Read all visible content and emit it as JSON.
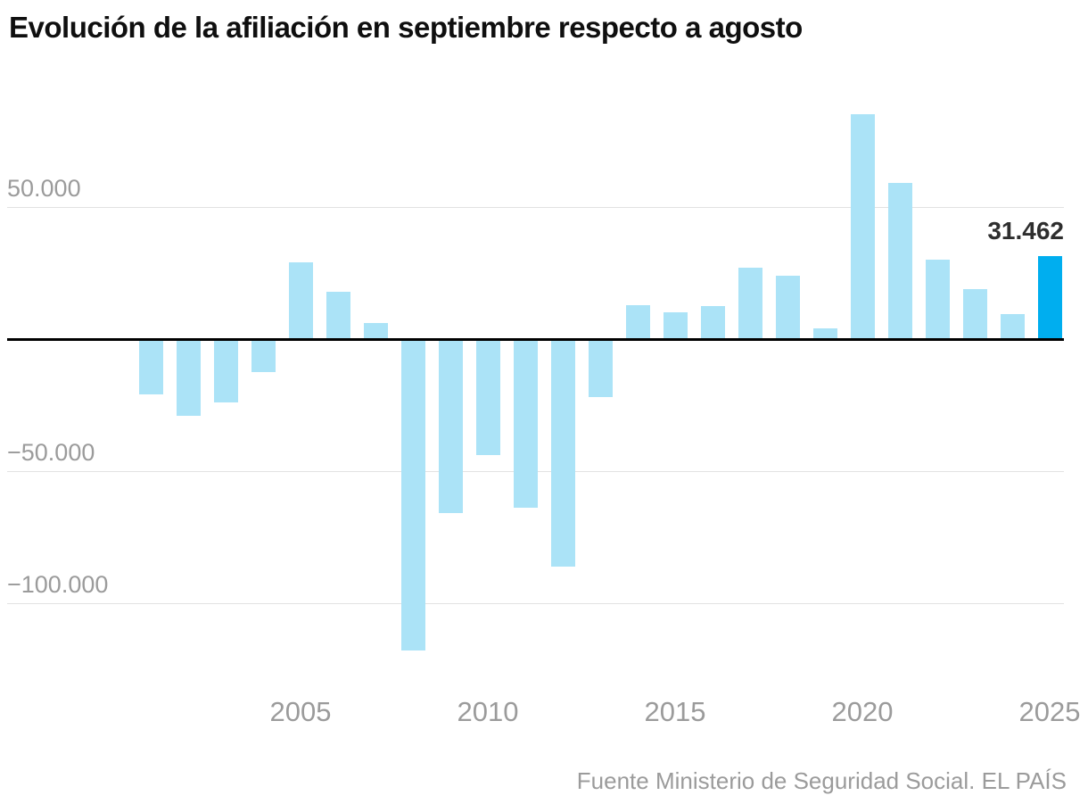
{
  "title": "Evolución de la afiliación en septiembre respecto a agosto",
  "footer": {
    "source": "Fuente Ministerio de Seguridad Social",
    "separator": ". ",
    "brand": "EL PAÍS"
  },
  "chart_data": {
    "type": "bar",
    "title": "Evolución de la afiliación en septiembre respecto a agosto",
    "x": [
      2001,
      2002,
      2003,
      2004,
      2005,
      2006,
      2007,
      2008,
      2009,
      2010,
      2011,
      2012,
      2013,
      2014,
      2015,
      2016,
      2017,
      2018,
      2019,
      2020,
      2021,
      2022,
      2023,
      2024,
      2025
    ],
    "values": [
      -21000,
      -29000,
      -24000,
      -12500,
      29000,
      18000,
      6000,
      -118000,
      -66000,
      -44000,
      -64000,
      -86000,
      -22000,
      13000,
      10000,
      12500,
      27000,
      24000,
      4000,
      85000,
      59000,
      30000,
      19000,
      9500,
      31462
    ],
    "highlight": {
      "index": 24,
      "year": 2025,
      "value": 31462,
      "label": "31.462"
    },
    "y_ticks": [
      {
        "value": 50000,
        "label": "50.000"
      },
      {
        "value": -50000,
        "label": "−50.000"
      },
      {
        "value": -100000,
        "label": "−100.000"
      }
    ],
    "x_ticks": [
      2005,
      2010,
      2015,
      2020,
      2025
    ],
    "ylim": [
      -125000,
      95000
    ],
    "xlabel": "",
    "ylabel": "",
    "grid": true,
    "legend": false,
    "colors": {
      "bar": "#abe3f7",
      "bar_highlight": "#00aeef",
      "grid_line": "#e2e2e2",
      "zero_line": "#000000",
      "tick_text": "#9b9b9b",
      "title_text": "#0f0f0f",
      "value_label_text": "#2e2e2e",
      "source_text": "#9b9b9b"
    }
  }
}
